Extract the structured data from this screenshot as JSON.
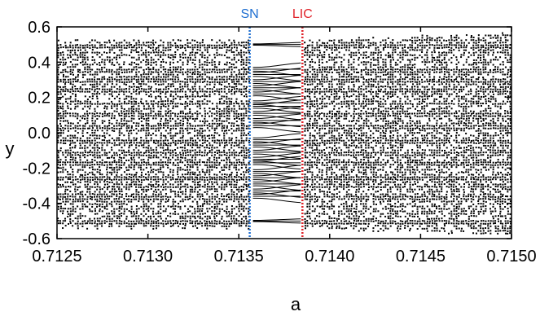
{
  "chart_data": {
    "type": "scatter",
    "xlabel": "a",
    "ylabel": "y",
    "xlim": [
      0.7125,
      0.715
    ],
    "ylim": [
      -0.6,
      0.6
    ],
    "x_ticks": [
      "0.7125",
      "0.7130",
      "0.7135",
      "0.7140",
      "0.7145",
      "0.7150"
    ],
    "y_ticks": [
      "0.6",
      "0.4",
      "0.2",
      "0.0",
      "-0.2",
      "-0.4",
      "-0.6"
    ],
    "grid": false,
    "annotations": [
      {
        "label": "SN",
        "x": 0.71356,
        "color": "#1f6fd1",
        "style": "dotted vertical line"
      },
      {
        "label": "LIC",
        "x": 0.71385,
        "color": "#e0242b",
        "style": "dotted vertical line"
      }
    ],
    "series": [
      {
        "color": "#000000",
        "description_of_data": "bifurcation diagram: chaotic band for a < SN and a > LIC spanning approx y in [-0.52, 0.52]; periodic window between SN and LIC"
      }
    ],
    "periodic_window_branch_ends": [
      0.5,
      0.36,
      0.33,
      0.29,
      0.255,
      0.22,
      0.17,
      0.15,
      0.11,
      0.07,
      0.04,
      -0.04,
      -0.07,
      -0.11,
      -0.15,
      -0.17,
      -0.22,
      -0.255,
      -0.29,
      -0.33,
      -0.36,
      -0.5
    ]
  }
}
